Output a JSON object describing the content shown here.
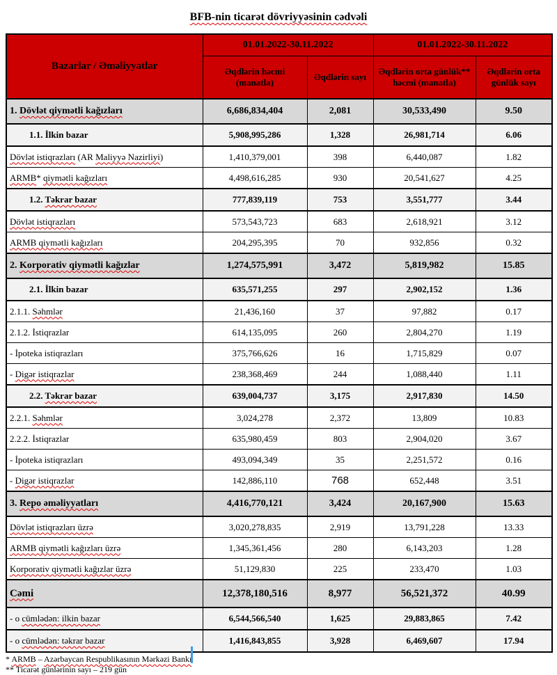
{
  "title": "BFB-nin ticarət dövriyyəsinin cədvəli",
  "colors": {
    "header_bg": "#cc0000",
    "section_row_bg": "#d8d8d8",
    "subsection_row_bg": "#f2f2f2",
    "border": "#000000",
    "spellcheck_underline": "#e00000",
    "text_cursor": "#3e9be9"
  },
  "table": {
    "header": {
      "col1": "Bazarlar / Əməliyyatlar",
      "periods": [
        "01.01.2022-30.11.2022",
        "01.01.2022-30.11.2022"
      ],
      "sub": [
        "Əqdlərin həcmi (manatla)",
        "Əqdlərin sayı",
        "Əqdlərin orta günlük** həcmi (manatla)",
        "Əqdlərin orta günlük sayı"
      ]
    },
    "rows": [
      {
        "kind": "section",
        "label": [
          {
            "t": "1. ",
            "sq": false
          },
          {
            "t": "Dövlət qiymətli kağızları",
            "sq": true
          }
        ],
        "values": [
          "6,686,834,404",
          "2,081",
          "30,533,490",
          "9.50"
        ]
      },
      {
        "kind": "subsection",
        "label": [
          {
            "t": "1.1. İlkin bazar",
            "sq": false
          }
        ],
        "values": [
          "5,908,995,286",
          "1,328",
          "26,981,714",
          "6.06"
        ]
      },
      {
        "kind": "item",
        "label": [
          {
            "t": "Dövlət istiqrazları",
            "sq": true
          },
          {
            "t": " (AR ",
            "sq": false
          },
          {
            "t": "Maliyyə Nazirliyi",
            "sq": true
          },
          {
            "t": ")",
            "sq": false
          }
        ],
        "values": [
          "1,410,379,001",
          "398",
          "6,440,087",
          "1.82"
        ]
      },
      {
        "kind": "item",
        "label": [
          {
            "t": "ARMB",
            "sq": true
          },
          {
            "t": "* ",
            "sq": false
          },
          {
            "t": "qiymətli kağızları",
            "sq": true
          }
        ],
        "values": [
          "4,498,616,285",
          "930",
          "20,541,627",
          "4.25"
        ]
      },
      {
        "kind": "subsection",
        "label": [
          {
            "t": "1.2. ",
            "sq": false
          },
          {
            "t": "Təkrar bazar",
            "sq": true
          }
        ],
        "values": [
          "777,839,119",
          "753",
          "3,551,777",
          "3.44"
        ]
      },
      {
        "kind": "item",
        "label": [
          {
            "t": "Dövlət istiqrazları",
            "sq": true
          }
        ],
        "values": [
          "573,543,723",
          "683",
          "2,618,921",
          "3.12"
        ]
      },
      {
        "kind": "item",
        "label": [
          {
            "t": "ARMB qiymətli kağızları",
            "sq": true
          }
        ],
        "values": [
          "204,295,395",
          "70",
          "932,856",
          "0.32"
        ]
      },
      {
        "kind": "section",
        "label": [
          {
            "t": "2. ",
            "sq": false
          },
          {
            "t": "Korporativ qiymətli kağızlar",
            "sq": true
          }
        ],
        "values": [
          "1,274,575,991",
          "3,472",
          "5,819,982",
          "15.85"
        ]
      },
      {
        "kind": "subsection",
        "label": [
          {
            "t": "2.1. İlkin bazar",
            "sq": false
          }
        ],
        "values": [
          "635,571,255",
          "297",
          "2,902,152",
          "1.36"
        ]
      },
      {
        "kind": "item",
        "label": [
          {
            "t": "2.1.1. ",
            "sq": false
          },
          {
            "t": "Səhmlər",
            "sq": true
          }
        ],
        "values": [
          "21,436,160",
          "37",
          "97,882",
          "0.17"
        ]
      },
      {
        "kind": "item",
        "label": [
          {
            "t": "2.1.2. İstiqrazlar",
            "sq": false
          }
        ],
        "values": [
          "614,135,095",
          "260",
          "2,804,270",
          "1.19"
        ]
      },
      {
        "kind": "item",
        "label": [
          {
            "t": " - İpoteka istiqrazları",
            "sq": false
          }
        ],
        "values": [
          "375,766,626",
          "16",
          "1,715,829",
          "0.07"
        ]
      },
      {
        "kind": "item",
        "label": [
          {
            "t": " - ",
            "sq": false
          },
          {
            "t": "Digər istiqrazlar",
            "sq": true
          }
        ],
        "values": [
          "238,368,469",
          "244",
          "1,088,440",
          "1.11"
        ]
      },
      {
        "kind": "subsection",
        "label": [
          {
            "t": "2.2. ",
            "sq": false
          },
          {
            "t": "Təkrar bazar",
            "sq": true
          }
        ],
        "values": [
          "639,004,737",
          "3,175",
          "2,917,830",
          "14.50"
        ]
      },
      {
        "kind": "item",
        "label": [
          {
            "t": "2.2.1. ",
            "sq": false
          },
          {
            "t": "Səhmlər",
            "sq": true
          }
        ],
        "values": [
          "3,024,278",
          "2,372",
          "13,809",
          "10.83"
        ]
      },
      {
        "kind": "item",
        "label": [
          {
            "t": "2.2.2. İstiqrazlar",
            "sq": false
          }
        ],
        "values": [
          "635,980,459",
          "803",
          "2,904,020",
          "3.67"
        ]
      },
      {
        "kind": "item",
        "label": [
          {
            "t": " - İpoteka istiqrazları",
            "sq": false
          }
        ],
        "values": [
          "493,094,349",
          "35",
          "2,251,572",
          "0.16"
        ]
      },
      {
        "kind": "item",
        "big_count": true,
        "label": [
          {
            "t": " - ",
            "sq": false
          },
          {
            "t": "Digər istiqrazlar",
            "sq": true
          }
        ],
        "values": [
          "142,886,110",
          "768",
          "652,448",
          "3.51"
        ]
      },
      {
        "kind": "section",
        "label": [
          {
            "t": "3. ",
            "sq": false
          },
          {
            "t": "Repo əməliyyatları",
            "sq": true
          }
        ],
        "values": [
          "4,416,770,121",
          "3,424",
          "20,167,900",
          "15.63"
        ]
      },
      {
        "kind": "item",
        "label": [
          {
            "t": "Dövlət istiqrazları üzrə",
            "sq": true
          }
        ],
        "values": [
          "3,020,278,835",
          "2,919",
          "13,791,228",
          "13.33"
        ]
      },
      {
        "kind": "item",
        "label": [
          {
            "t": "ARMB qiymətli kağızları üzrə",
            "sq": true
          }
        ],
        "values": [
          "1,345,361,456",
          "280",
          "6,143,203",
          "1.28"
        ]
      },
      {
        "kind": "item",
        "label": [
          {
            "t": "Korporativ qiymətli kağızlar üzrə",
            "sq": true
          }
        ],
        "values": [
          "51,129,830",
          "225",
          "233,470",
          "1.03"
        ]
      },
      {
        "kind": "total",
        "label": [
          {
            "t": "Cəmi",
            "sq": true
          }
        ],
        "values": [
          "12,378,180,516",
          "8,977",
          "56,521,372",
          "40.99"
        ]
      },
      {
        "kind": "subtotal",
        "label": [
          {
            "t": " - o ",
            "sq": false
          },
          {
            "t": "cümlədən: ilkin bazar",
            "sq": true
          }
        ],
        "values": [
          "6,544,566,540",
          "1,625",
          "29,883,865",
          "7.42"
        ]
      },
      {
        "kind": "subtotal",
        "label": [
          {
            "t": " - o ",
            "sq": false
          },
          {
            "t": "cümlədən: təkrar bazar",
            "sq": true
          }
        ],
        "values": [
          "1,416,843,855",
          "3,928",
          "6,469,607",
          "17.94"
        ]
      }
    ]
  },
  "footnotes": [
    [
      {
        "t": "* ",
        "sq": false
      },
      {
        "t": "ARMB",
        "sq": true
      },
      {
        "t": " – ",
        "sq": false
      },
      {
        "t": "Azərbaycan Respublikasının Mərkəzi Bankı",
        "sq": true
      }
    ],
    [
      {
        "t": "** ",
        "sq": false
      },
      {
        "t": "Ticarət günlərinin sayı",
        "sq": true
      },
      {
        "t": " – 219 ",
        "sq": false
      },
      {
        "t": "gün",
        "sq": true
      }
    ]
  ]
}
